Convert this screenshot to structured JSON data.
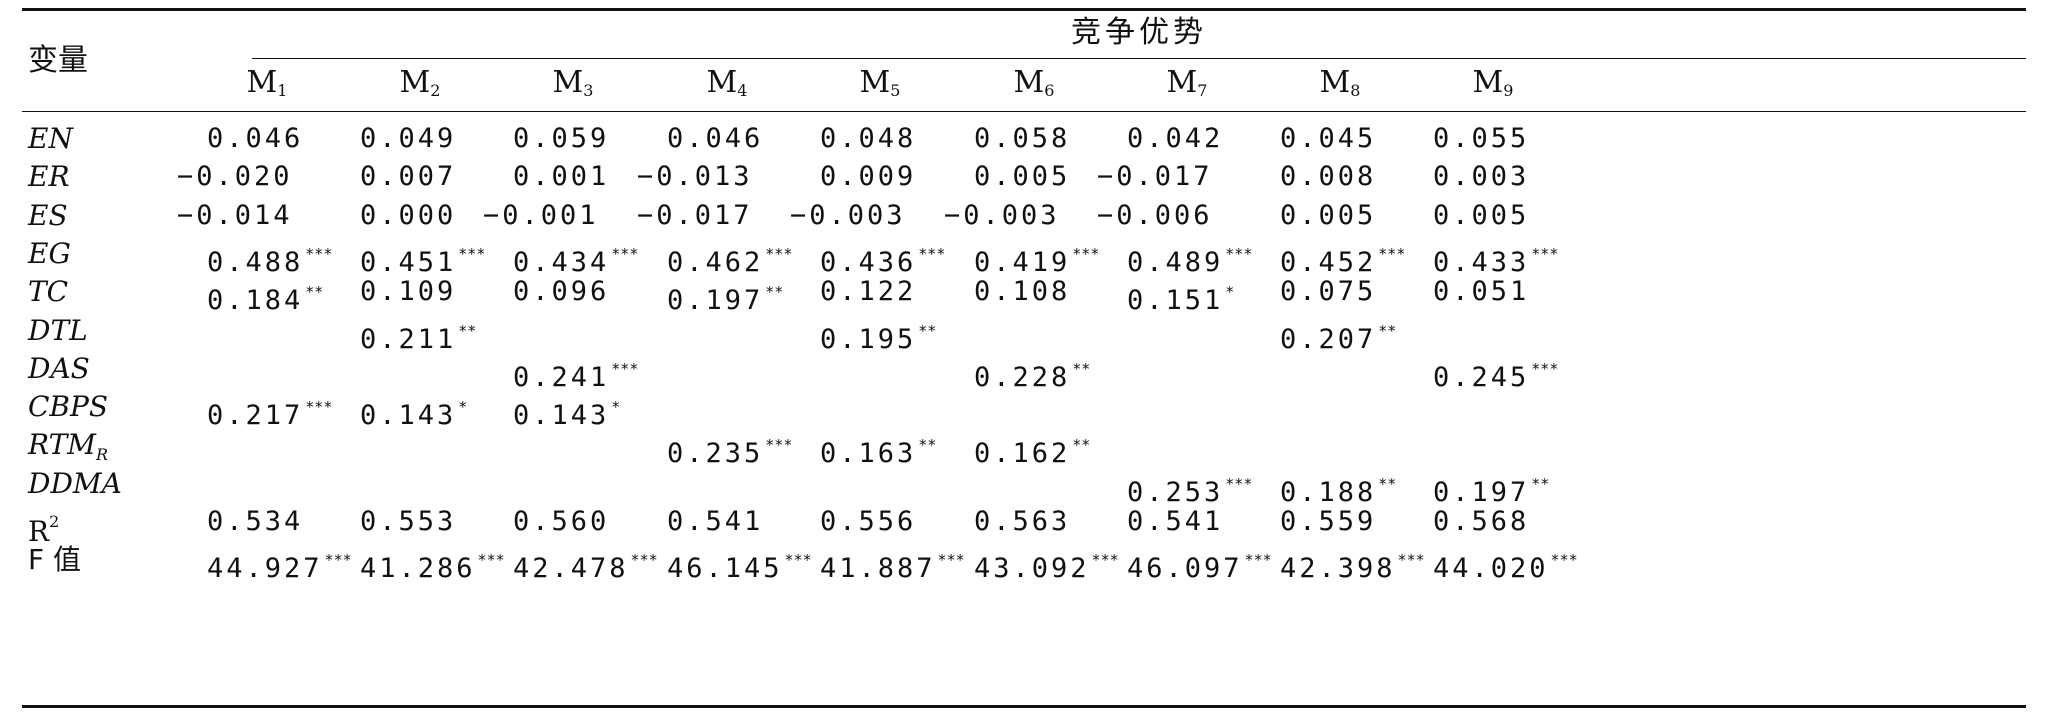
{
  "header": {
    "var_label": "变量",
    "group_label": "竞争优势",
    "models": [
      {
        "main": "M",
        "sub": "1"
      },
      {
        "main": "M",
        "sub": "2"
      },
      {
        "main": "M",
        "sub": "3"
      },
      {
        "main": "M",
        "sub": "4"
      },
      {
        "main": "M",
        "sub": "5"
      },
      {
        "main": "M",
        "sub": "6"
      },
      {
        "main": "M",
        "sub": "7"
      },
      {
        "main": "M",
        "sub": "8"
      },
      {
        "main": "M",
        "sub": "9"
      }
    ]
  },
  "rows": [
    {
      "label": "EN",
      "cells": [
        [
          "0.046",
          ""
        ],
        [
          "0.049",
          ""
        ],
        [
          "0.059",
          ""
        ],
        [
          "0.046",
          ""
        ],
        [
          "0.048",
          ""
        ],
        [
          "0.058",
          ""
        ],
        [
          "0.042",
          ""
        ],
        [
          "0.045",
          ""
        ],
        [
          "0.055",
          ""
        ]
      ]
    },
    {
      "label": "ER",
      "cells": [
        [
          "−0.020",
          ""
        ],
        [
          "0.007",
          ""
        ],
        [
          "0.001",
          ""
        ],
        [
          "−0.013",
          ""
        ],
        [
          "0.009",
          ""
        ],
        [
          "0.005",
          ""
        ],
        [
          "−0.017",
          ""
        ],
        [
          "0.008",
          ""
        ],
        [
          "0.003",
          ""
        ]
      ]
    },
    {
      "label": "ES",
      "cells": [
        [
          "−0.014",
          ""
        ],
        [
          "0.000",
          ""
        ],
        [
          "−0.001",
          ""
        ],
        [
          "−0.017",
          ""
        ],
        [
          "−0.003",
          ""
        ],
        [
          "−0.003",
          ""
        ],
        [
          "−0.006",
          ""
        ],
        [
          "0.005",
          ""
        ],
        [
          "0.005",
          ""
        ]
      ]
    },
    {
      "label": "EG",
      "cells": [
        [
          "0.488",
          "***"
        ],
        [
          "0.451",
          "***"
        ],
        [
          "0.434",
          "***"
        ],
        [
          "0.462",
          "***"
        ],
        [
          "0.436",
          "***"
        ],
        [
          "0.419",
          "***"
        ],
        [
          "0.489",
          "***"
        ],
        [
          "0.452",
          "***"
        ],
        [
          "0.433",
          "***"
        ]
      ]
    },
    {
      "label": "TC",
      "cells": [
        [
          "0.184",
          "**"
        ],
        [
          "0.109",
          ""
        ],
        [
          "0.096",
          ""
        ],
        [
          "0.197",
          "**"
        ],
        [
          "0.122",
          ""
        ],
        [
          "0.108",
          ""
        ],
        [
          "0.151",
          "*"
        ],
        [
          "0.075",
          ""
        ],
        [
          "0.051",
          ""
        ]
      ]
    },
    {
      "label": "DTL",
      "cells": [
        [
          "",
          ""
        ],
        [
          "0.211",
          "**"
        ],
        [
          "",
          ""
        ],
        [
          "",
          ""
        ],
        [
          "0.195",
          "**"
        ],
        [
          "",
          ""
        ],
        [
          "",
          ""
        ],
        [
          "0.207",
          "**"
        ],
        [
          "",
          ""
        ]
      ]
    },
    {
      "label": "DAS",
      "cells": [
        [
          "",
          ""
        ],
        [
          "",
          ""
        ],
        [
          "0.241",
          "***"
        ],
        [
          "",
          ""
        ],
        [
          "",
          ""
        ],
        [
          "0.228",
          "**"
        ],
        [
          "",
          ""
        ],
        [
          "",
          ""
        ],
        [
          "0.245",
          "***"
        ]
      ]
    },
    {
      "label": "CBPS",
      "cells": [
        [
          "0.217",
          "***"
        ],
        [
          "0.143",
          "*"
        ],
        [
          "0.143",
          "*"
        ],
        [
          "",
          ""
        ],
        [
          "",
          ""
        ],
        [
          "",
          ""
        ],
        [
          "",
          ""
        ],
        [
          "",
          ""
        ],
        [
          "",
          ""
        ]
      ]
    },
    {
      "label": "RTM",
      "label_sub": "R",
      "cells": [
        [
          "",
          ""
        ],
        [
          "",
          ""
        ],
        [
          "",
          ""
        ],
        [
          "0.235",
          "***"
        ],
        [
          "0.163",
          "**"
        ],
        [
          "0.162",
          "**"
        ],
        [
          "",
          ""
        ],
        [
          "",
          ""
        ],
        [
          "",
          ""
        ]
      ]
    },
    {
      "label": "DDMA",
      "cells": [
        [
          "",
          ""
        ],
        [
          "",
          ""
        ],
        [
          "",
          ""
        ],
        [
          "",
          ""
        ],
        [
          "",
          ""
        ],
        [
          "",
          ""
        ],
        [
          "0.253",
          "***"
        ],
        [
          "0.188",
          "**"
        ],
        [
          "0.197",
          "**"
        ]
      ]
    },
    {
      "label": "R",
      "label_sup": "2",
      "plain": true,
      "cells": [
        [
          "0.534",
          ""
        ],
        [
          "0.553",
          ""
        ],
        [
          "0.560",
          ""
        ],
        [
          "0.541",
          ""
        ],
        [
          "0.556",
          ""
        ],
        [
          "0.563",
          ""
        ],
        [
          "0.541",
          ""
        ],
        [
          "0.559",
          ""
        ],
        [
          "0.568",
          ""
        ]
      ]
    },
    {
      "label": "F 值",
      "plain": true,
      "cells": [
        [
          "44.927",
          "***"
        ],
        [
          "41.286",
          "***"
        ],
        [
          "42.478",
          "***"
        ],
        [
          "46.145",
          "***"
        ],
        [
          "41.887",
          "***"
        ],
        [
          "43.092",
          "***"
        ],
        [
          "46.097",
          "***"
        ],
        [
          "42.398",
          "***"
        ],
        [
          "44.020",
          "***"
        ]
      ]
    }
  ]
}
